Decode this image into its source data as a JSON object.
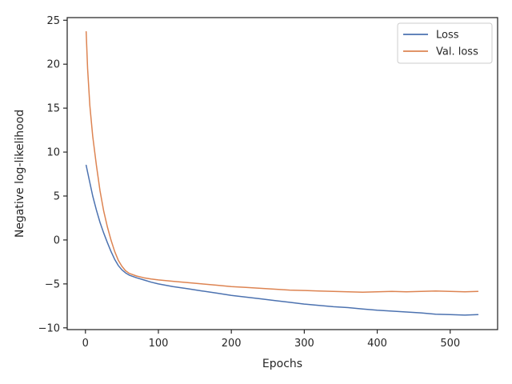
{
  "chart_data": {
    "type": "line",
    "xlabel": "Epochs",
    "ylabel": "Negative log-likelihood",
    "xlim": [
      -25,
      565
    ],
    "ylim": [
      -10.2,
      25.3
    ],
    "xticks": [
      0,
      100,
      200,
      300,
      400,
      500
    ],
    "yticks": [
      -10,
      -5,
      0,
      5,
      10,
      15,
      20,
      25
    ],
    "xtick_labels": [
      "0",
      "100",
      "200",
      "300",
      "400",
      "500"
    ],
    "ytick_labels": [
      "−10",
      "−5",
      "0",
      "5",
      "10",
      "15",
      "20",
      "25"
    ],
    "grid": false,
    "legend": {
      "position": "top-right"
    },
    "series": [
      {
        "name": "Loss",
        "color": "#4c72b0",
        "points": [
          [
            1,
            8.5
          ],
          [
            5,
            6.9
          ],
          [
            10,
            5.0
          ],
          [
            15,
            3.4
          ],
          [
            20,
            2.0
          ],
          [
            25,
            0.8
          ],
          [
            30,
            -0.3
          ],
          [
            35,
            -1.3
          ],
          [
            40,
            -2.2
          ],
          [
            45,
            -2.9
          ],
          [
            50,
            -3.4
          ],
          [
            55,
            -3.75
          ],
          [
            60,
            -4.0
          ],
          [
            70,
            -4.3
          ],
          [
            80,
            -4.55
          ],
          [
            90,
            -4.8
          ],
          [
            100,
            -5.0
          ],
          [
            120,
            -5.3
          ],
          [
            140,
            -5.55
          ],
          [
            160,
            -5.8
          ],
          [
            180,
            -6.05
          ],
          [
            200,
            -6.3
          ],
          [
            220,
            -6.5
          ],
          [
            240,
            -6.7
          ],
          [
            260,
            -6.9
          ],
          [
            280,
            -7.1
          ],
          [
            300,
            -7.3
          ],
          [
            320,
            -7.45
          ],
          [
            340,
            -7.6
          ],
          [
            360,
            -7.7
          ],
          [
            380,
            -7.85
          ],
          [
            400,
            -8.0
          ],
          [
            420,
            -8.1
          ],
          [
            440,
            -8.2
          ],
          [
            460,
            -8.3
          ],
          [
            480,
            -8.45
          ],
          [
            500,
            -8.5
          ],
          [
            520,
            -8.55
          ],
          [
            538,
            -8.5
          ]
        ]
      },
      {
        "name": "Val. loss",
        "color": "#dd8452",
        "points": [
          [
            1,
            23.7
          ],
          [
            3,
            19.5
          ],
          [
            6,
            15.3
          ],
          [
            10,
            11.8
          ],
          [
            15,
            8.5
          ],
          [
            20,
            5.6
          ],
          [
            25,
            3.3
          ],
          [
            30,
            1.5
          ],
          [
            35,
            0.0
          ],
          [
            40,
            -1.3
          ],
          [
            45,
            -2.3
          ],
          [
            50,
            -3.0
          ],
          [
            55,
            -3.5
          ],
          [
            60,
            -3.8
          ],
          [
            70,
            -4.1
          ],
          [
            80,
            -4.3
          ],
          [
            90,
            -4.45
          ],
          [
            100,
            -4.55
          ],
          [
            120,
            -4.7
          ],
          [
            140,
            -4.85
          ],
          [
            160,
            -5.0
          ],
          [
            180,
            -5.15
          ],
          [
            200,
            -5.3
          ],
          [
            220,
            -5.4
          ],
          [
            240,
            -5.5
          ],
          [
            260,
            -5.6
          ],
          [
            280,
            -5.7
          ],
          [
            300,
            -5.75
          ],
          [
            320,
            -5.8
          ],
          [
            340,
            -5.85
          ],
          [
            360,
            -5.9
          ],
          [
            380,
            -5.95
          ],
          [
            400,
            -5.9
          ],
          [
            420,
            -5.85
          ],
          [
            440,
            -5.9
          ],
          [
            460,
            -5.85
          ],
          [
            480,
            -5.8
          ],
          [
            500,
            -5.85
          ],
          [
            520,
            -5.9
          ],
          [
            538,
            -5.85
          ]
        ]
      }
    ]
  }
}
